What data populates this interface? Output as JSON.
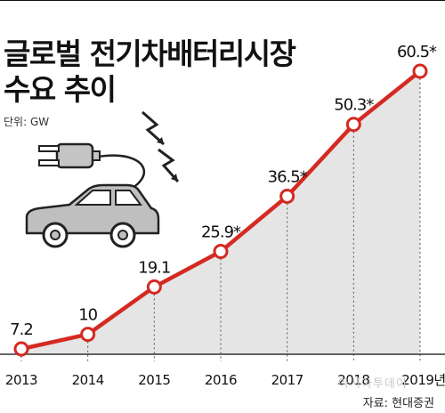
{
  "title_lines": [
    "글로벌 전기차배터리시장",
    "수요 추이"
  ],
  "unit": "단위: GW",
  "source": "자료: 현대증권",
  "watermark": "아시아투데이",
  "colors": {
    "line": "#d42a22",
    "area": "#e5e5e5",
    "marker_fill": "#ffffff",
    "axis": "#333333",
    "icon_fill": "#bfbfbf",
    "icon_stroke": "#222222"
  },
  "icons": [
    "car-icon",
    "plug-icon",
    "lightning-icon"
  ],
  "chart_data": {
    "type": "area",
    "title": "글로벌 전기차배터리시장 수요 추이",
    "xlabel": "",
    "ylabel": "",
    "unit": "GW",
    "categories": [
      "2013",
      "2014",
      "2015",
      "2016",
      "2017",
      "2018",
      "2019년"
    ],
    "values": [
      7.2,
      10,
      19.1,
      25.9,
      36.5,
      50.3,
      60.5
    ],
    "value_labels": [
      "7.2",
      "10",
      "19.1",
      "25.9*",
      "36.5*",
      "50.3*",
      "60.5*"
    ],
    "grid": false,
    "legend": "none"
  }
}
